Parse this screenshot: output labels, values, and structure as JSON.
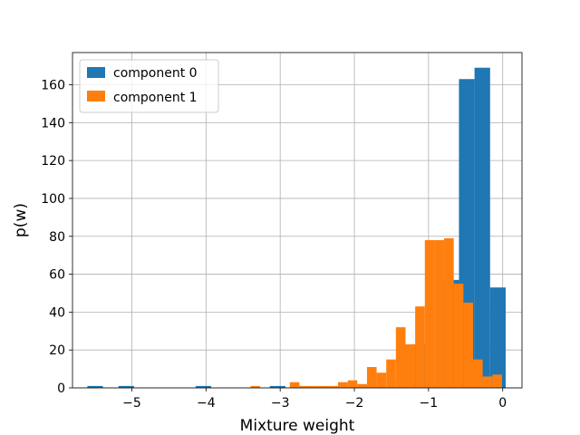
{
  "chart_data": {
    "type": "histogram",
    "xlabel": "Mixture weight",
    "ylabel": "p(w)",
    "xlim": [
      -5.8,
      0.26
    ],
    "ylim": [
      0,
      177
    ],
    "grid": true,
    "legend_position": "top-left",
    "x_ticks": [
      -5,
      -4,
      -3,
      -2,
      -1,
      0
    ],
    "x_tick_labels": [
      "−5",
      "−4",
      "−3",
      "−2",
      "−1",
      "0"
    ],
    "y_ticks": [
      0,
      20,
      40,
      60,
      80,
      100,
      120,
      140,
      160
    ],
    "y_tick_labels": [
      "0",
      "20",
      "40",
      "60",
      "80",
      "100",
      "120",
      "140",
      "160"
    ],
    "series": [
      {
        "name": "component 0",
        "color": "#1f77b4",
        "bins": [
          {
            "x0": -5.6,
            "x1": -5.39,
            "value": 1
          },
          {
            "x0": -5.18,
            "x1": -4.97,
            "value": 1
          },
          {
            "x0": -4.14,
            "x1": -3.93,
            "value": 1
          },
          {
            "x0": -3.14,
            "x1": -2.93,
            "value": 1
          },
          {
            "x0": -1.22,
            "x1": -1.01,
            "value": 23
          },
          {
            "x0": -0.8,
            "x1": -0.59,
            "value": 57
          },
          {
            "x0": -0.59,
            "x1": -0.38,
            "value": 163
          },
          {
            "x0": -0.38,
            "x1": -0.17,
            "value": 169
          },
          {
            "x0": -0.17,
            "x1": 0.04,
            "value": 53
          }
        ]
      },
      {
        "name": "component 1",
        "color": "#ff7f0e",
        "bins": [
          {
            "x0": -3.4,
            "x1": -3.27,
            "value": 1
          },
          {
            "x0": -2.87,
            "x1": -2.74,
            "value": 3
          },
          {
            "x0": -2.74,
            "x1": -2.61,
            "value": 1
          },
          {
            "x0": -2.61,
            "x1": -2.48,
            "value": 1
          },
          {
            "x0": -2.48,
            "x1": -2.35,
            "value": 1
          },
          {
            "x0": -2.35,
            "x1": -2.22,
            "value": 1
          },
          {
            "x0": -2.22,
            "x1": -2.09,
            "value": 3
          },
          {
            "x0": -2.09,
            "x1": -1.96,
            "value": 4
          },
          {
            "x0": -1.96,
            "x1": -1.83,
            "value": 2
          },
          {
            "x0": -1.83,
            "x1": -1.7,
            "value": 11
          },
          {
            "x0": -1.7,
            "x1": -1.57,
            "value": 8
          },
          {
            "x0": -1.57,
            "x1": -1.44,
            "value": 15
          },
          {
            "x0": -1.44,
            "x1": -1.31,
            "value": 32
          },
          {
            "x0": -1.31,
            "x1": -1.18,
            "value": 23
          },
          {
            "x0": -1.18,
            "x1": -1.05,
            "value": 43
          },
          {
            "x0": -1.05,
            "x1": -0.92,
            "value": 78
          },
          {
            "x0": -0.92,
            "x1": -0.79,
            "value": 78
          },
          {
            "x0": -0.79,
            "x1": -0.66,
            "value": 79
          },
          {
            "x0": -0.66,
            "x1": -0.53,
            "value": 55
          },
          {
            "x0": -0.53,
            "x1": -0.4,
            "value": 45
          },
          {
            "x0": -0.4,
            "x1": -0.27,
            "value": 15
          },
          {
            "x0": -0.27,
            "x1": -0.14,
            "value": 6
          },
          {
            "x0": -0.14,
            "x1": -0.01,
            "value": 7
          }
        ]
      }
    ]
  }
}
